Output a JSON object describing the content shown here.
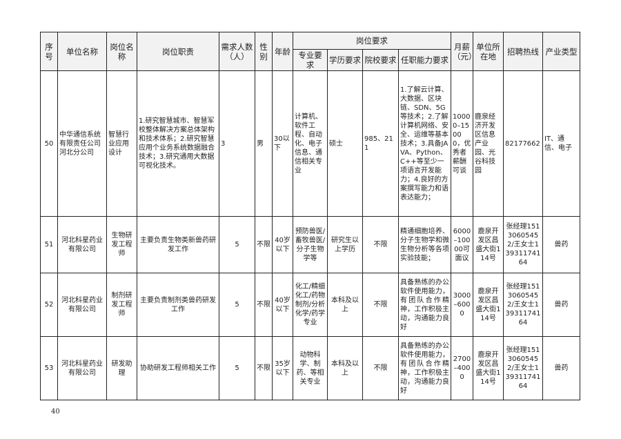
{
  "headers": {
    "seq": "序号",
    "unit": "单位名称",
    "position": "岗位名称",
    "duty": "岗位职责",
    "count": "需求人数（人）",
    "gender": "性别",
    "age": "年龄",
    "requirements": "岗位要求",
    "major": "专业要求",
    "education": "学历要求",
    "school": "院校要求",
    "ability": "任职能力要求",
    "salary": "月薪（元）",
    "location": "单位所在地",
    "hotline": "招聘热线",
    "industry": "产业类型"
  },
  "rows": [
    {
      "seq": "50",
      "unit": "中华通信系统有限责任公司河北分公司",
      "position": "智慧行业应用设计",
      "duty": "1.研究智慧城市、智慧军校整体解决方案总体架构和技术体系；2.研究智慧应用个业务系统数据融合技术；3.研究通用大数据可视化技术。",
      "count": "3",
      "gender": "男",
      "age": "30以下",
      "major": "计算机、软件工程、自动化、电子信息、通信相关专业",
      "education": "硕士",
      "school": "985、211",
      "ability": "1.了解云计算、大数据、区块链、SDN、5G等技术；2.了解计算机网络、安全、运维等基本技术；3.具备JAVA、Python、C++等至少一项语言开发能力；4.良好的方案撰写能力和语表达能力；",
      "salary": "10000–15000，优秀者薪酬可谈",
      "location": "鹿泉经济开发区信息产业园、光谷科技园",
      "hotline": "82177662",
      "industry": "IT、通信、电子"
    },
    {
      "seq": "51",
      "unit": "河北科星药业有限公司",
      "position": "生物研发工程师",
      "duty": "主要负责生物类新兽药研发工作",
      "count": "5",
      "gender": "不限",
      "age": "40岁以下",
      "major": "预防兽医/畜牧兽医/分子生物学等",
      "education": "研究生以上学历",
      "school": "不限",
      "ability": "精通细胞培养、分子生物学和微生物分析等各项实验技能；",
      "salary": "6000–10000可面议",
      "location": "鹿泉开发区昌盛大街114号",
      "hotline": "张经理15130605452/王女士13931174164",
      "industry": "兽药"
    },
    {
      "seq": "52",
      "unit": "河北科星药业有限公司",
      "position": "制剂研发工程师",
      "duty": "主要负责制剂类兽药研发工作",
      "count": "5",
      "gender": "不限",
      "age": "40岁以下",
      "major": "化工/精细化工/药物制剂/分析化学/药学专业",
      "education": "本科及以上",
      "school": "不限",
      "ability": "具备熟练的办公软件使用能力，有团队合作精神，工作积极主动，沟通能力良好",
      "salary": "3000–6000",
      "location": "鹿泉开发区昌盛大街114号",
      "hotline": "张经理15130605452/王女士13931174164",
      "industry": "兽药"
    },
    {
      "seq": "53",
      "unit": "河北科星药业有限公司",
      "position": "研发助理",
      "duty": "协助研发工程师相关工作",
      "count": "5",
      "gender": "不限",
      "age": "35岁以下",
      "major": "动物科学、制药、等相关专业",
      "education": "本科及以上",
      "school": "不限",
      "ability": "具备熟练的办公软件使用能力，有团队合作精神，工作积极主动，沟通能力良好",
      "salary": "2700–4000",
      "location": "鹿泉开发区昌盛大街114号",
      "hotline": "张经理15130605452/王女士13931174164",
      "industry": "兽药"
    }
  ],
  "page_number": "40"
}
